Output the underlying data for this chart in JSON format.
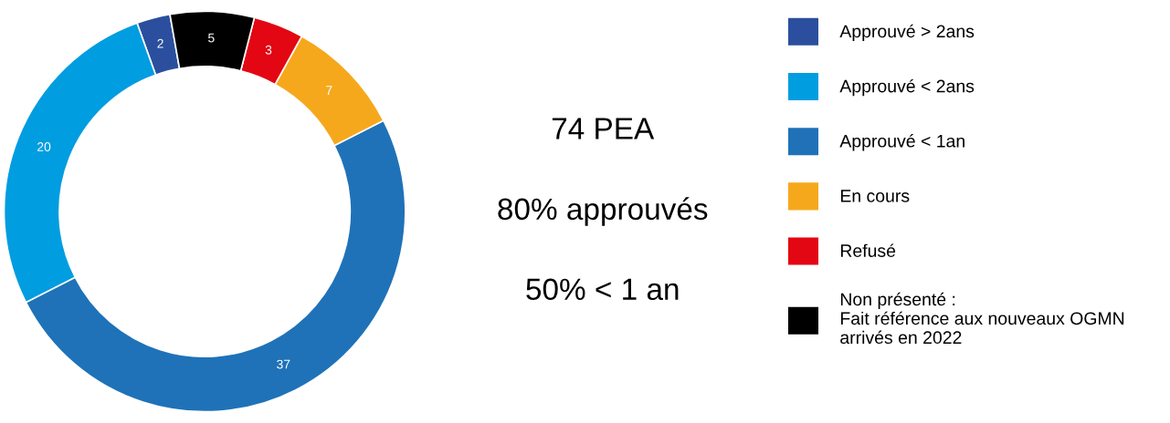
{
  "chart_data": {
    "type": "donut",
    "categories": [
      "Approuvé > 2ans",
      "Approuvé < 2ans",
      "Approuvé < 1an",
      "En cours",
      "Refusé",
      "Non présenté :\nFait référence aux nouveaux OGMN\narrivés en 2022"
    ],
    "values": [
      2,
      20,
      37,
      7,
      3,
      5
    ],
    "colors": [
      "#2b4f9e",
      "#009de0",
      "#1f72b8",
      "#f6a81c",
      "#e30613",
      "#000000"
    ],
    "data_labels": true,
    "legend": "right",
    "annotations": [
      "74 PEA",
      "80% approuvés",
      "50% < 1 an"
    ]
  }
}
